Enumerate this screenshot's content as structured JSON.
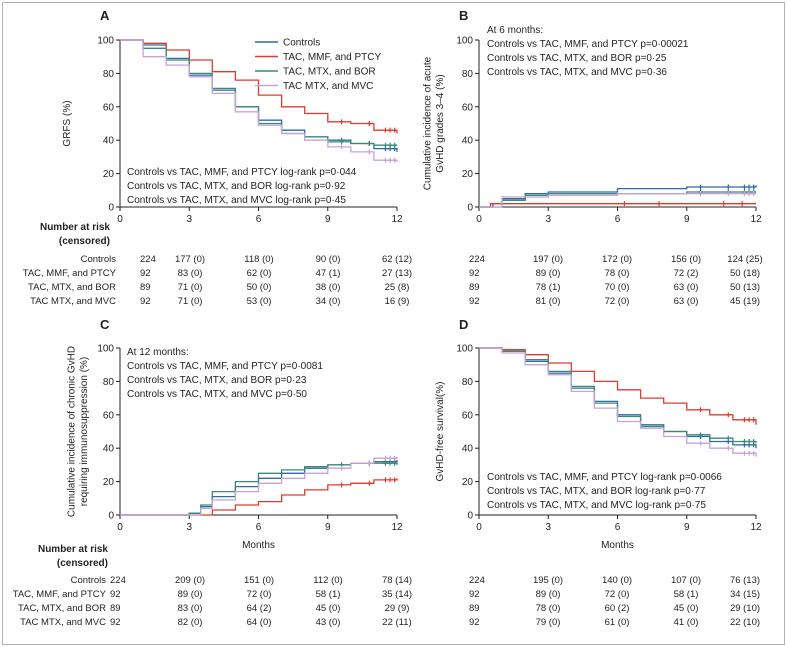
{
  "chart_data": [
    {
      "panel": "A",
      "type": "line",
      "ylabel": "GRFS (%)",
      "xlabel": "",
      "xlim": [
        0,
        12
      ],
      "ylim": [
        0,
        100
      ],
      "x_ticks": [
        "0",
        "3",
        "6",
        "9",
        "12"
      ],
      "y_ticks": [
        "0",
        "20",
        "40",
        "60",
        "80",
        "100"
      ],
      "legend": [
        "Controls",
        "TAC, MMF, and PTCY",
        "TAC, MTX, and BOR",
        "TAC MTX, and MVC"
      ],
      "annotation_header": "",
      "annotations": [
        "Controls vs TAC, MMF, and PTCY log-rank p=0·044",
        "Controls vs TAC, MTX, and BOR log-rank p=0·92",
        "Controls vs TAC, MTX, and MVC log-rank p=0·45"
      ],
      "series": [
        {
          "name": "Controls",
          "color": "#2d6aa6",
          "points": [
            [
              0,
              100
            ],
            [
              1,
              97
            ],
            [
              2,
              89
            ],
            [
              3,
              79
            ],
            [
              4,
              70
            ],
            [
              5,
              60
            ],
            [
              6,
              52
            ],
            [
              7,
              46
            ],
            [
              8,
              42
            ],
            [
              9,
              40
            ],
            [
              10,
              38
            ],
            [
              11,
              35
            ],
            [
              12,
              33
            ]
          ]
        },
        {
          "name": "TAC, MMF, and PTCY",
          "color": "#e03a2f",
          "points": [
            [
              0,
              100
            ],
            [
              1,
              98
            ],
            [
              2,
              94
            ],
            [
              3,
              88
            ],
            [
              4,
              81
            ],
            [
              5,
              76
            ],
            [
              6,
              67
            ],
            [
              7,
              60
            ],
            [
              8,
              56
            ],
            [
              9,
              51
            ],
            [
              10,
              50
            ],
            [
              11,
              46
            ],
            [
              12,
              44
            ]
          ]
        },
        {
          "name": "TAC, MTX, and BOR",
          "color": "#3d8a74",
          "points": [
            [
              0,
              100
            ],
            [
              1,
              95
            ],
            [
              2,
              88
            ],
            [
              3,
              80
            ],
            [
              4,
              71
            ],
            [
              5,
              60
            ],
            [
              6,
              50
            ],
            [
              7,
              44
            ],
            [
              8,
              42
            ],
            [
              9,
              39
            ],
            [
              10,
              38
            ],
            [
              11,
              37
            ],
            [
              12,
              37
            ]
          ]
        },
        {
          "name": "TAC MTX, and MVC",
          "color": "#c8a2d6",
          "points": [
            [
              0,
              100
            ],
            [
              1,
              90
            ],
            [
              2,
              85
            ],
            [
              3,
              78
            ],
            [
              4,
              68
            ],
            [
              5,
              57
            ],
            [
              6,
              49
            ],
            [
              7,
              44
            ],
            [
              8,
              40
            ],
            [
              9,
              36
            ],
            [
              10,
              33
            ],
            [
              11,
              28
            ],
            [
              12,
              27
            ]
          ]
        }
      ]
    },
    {
      "panel": "B",
      "type": "line",
      "ylabel": "Cumulative incidence of acute GvHD grades 3–4 (%)",
      "xlabel": "",
      "xlim": [
        0,
        12
      ],
      "ylim": [
        0,
        100
      ],
      "x_ticks": [
        "0",
        "3",
        "6",
        "9",
        "12"
      ],
      "y_ticks": [
        "0",
        "20",
        "40",
        "60",
        "80",
        "100"
      ],
      "legend": [],
      "annotation_header": "At 6 months:",
      "annotations": [
        "Controls vs TAC, MMF, and PTCY p=0·00021",
        "Controls vs TAC, MTX, and BOR p=0·25",
        "Controls vs TAC, MTX, and MVC p=0·36"
      ],
      "series": [
        {
          "name": "Controls",
          "color": "#2d6aa6",
          "points": [
            [
              0,
              0
            ],
            [
              0.6,
              2
            ],
            [
              1,
              5
            ],
            [
              2,
              8
            ],
            [
              3,
              9
            ],
            [
              6,
              11
            ],
            [
              9,
              12
            ],
            [
              12,
              13
            ]
          ]
        },
        {
          "name": "TAC, MMF, and PTCY",
          "color": "#e03a2f",
          "points": [
            [
              0,
              0
            ],
            [
              0.5,
              2
            ],
            [
              12,
              2
            ]
          ]
        },
        {
          "name": "TAC, MTX, and BOR",
          "color": "#3d8a74",
          "points": [
            [
              0,
              0
            ],
            [
              1,
              4
            ],
            [
              2,
              7
            ],
            [
              3,
              8
            ],
            [
              6,
              8
            ],
            [
              9,
              9
            ],
            [
              12,
              9
            ]
          ]
        },
        {
          "name": "TAC MTX, and MVC",
          "color": "#c8a2d6",
          "points": [
            [
              0,
              0
            ],
            [
              1,
              6
            ],
            [
              3,
              7
            ],
            [
              6,
              8
            ],
            [
              12,
              8
            ]
          ]
        }
      ]
    },
    {
      "panel": "C",
      "type": "line",
      "ylabel": "Cumulative incidence of chronic GvHD requiring immunosuppression (%)",
      "xlabel": "Months",
      "xlim": [
        0,
        12
      ],
      "ylim": [
        0,
        100
      ],
      "x_ticks": [
        "0",
        "3",
        "6",
        "9",
        "12"
      ],
      "y_ticks": [
        "0",
        "20",
        "40",
        "60",
        "80",
        "100"
      ],
      "legend": [],
      "annotation_header": "At 12 months:",
      "annotations": [
        "Controls vs TAC, MMF, and PTCY p=0·0081",
        "Controls vs TAC, MTX, and BOR p=0·23",
        "Controls vs TAC, MTX, and MVC p=0·50"
      ],
      "series": [
        {
          "name": "Controls",
          "color": "#2d6aa6",
          "points": [
            [
              0,
              0
            ],
            [
              3,
              1
            ],
            [
              3.5,
              5
            ],
            [
              4,
              11
            ],
            [
              5,
              17
            ],
            [
              6,
              22
            ],
            [
              7,
              25
            ],
            [
              8,
              28
            ],
            [
              9,
              30
            ],
            [
              10,
              31
            ],
            [
              11,
              32
            ],
            [
              12,
              33
            ]
          ]
        },
        {
          "name": "TAC, MMF, and PTCY",
          "color": "#e03a2f",
          "points": [
            [
              0,
              0
            ],
            [
              3,
              0
            ],
            [
              4,
              3
            ],
            [
              5,
              6
            ],
            [
              6,
              8
            ],
            [
              7,
              12
            ],
            [
              8,
              15
            ],
            [
              9,
              18
            ],
            [
              10,
              19
            ],
            [
              11,
              21
            ],
            [
              12,
              22
            ]
          ]
        },
        {
          "name": "TAC, MTX, and BOR",
          "color": "#3d8a74",
          "points": [
            [
              0,
              0
            ],
            [
              3,
              1
            ],
            [
              3.5,
              6
            ],
            [
              4,
              14
            ],
            [
              5,
              20
            ],
            [
              6,
              25
            ],
            [
              7,
              27
            ],
            [
              8,
              29
            ],
            [
              9,
              30
            ],
            [
              10,
              31
            ],
            [
              11,
              31
            ],
            [
              12,
              30
            ]
          ]
        },
        {
          "name": "TAC MTX, and MVC",
          "color": "#c8a2d6",
          "points": [
            [
              0,
              0
            ],
            [
              3,
              0
            ],
            [
              3.5,
              4
            ],
            [
              4,
              9
            ],
            [
              5,
              14
            ],
            [
              6,
              19
            ],
            [
              7,
              22
            ],
            [
              8,
              25
            ],
            [
              9,
              28
            ],
            [
              10,
              31
            ],
            [
              11,
              34
            ],
            [
              12,
              35
            ]
          ]
        }
      ]
    },
    {
      "panel": "D",
      "type": "line",
      "ylabel": "GvHD-free survival(%)",
      "xlabel": "Months",
      "xlim": [
        0,
        12
      ],
      "ylim": [
        0,
        100
      ],
      "x_ticks": [
        "0",
        "3",
        "6",
        "9",
        "12"
      ],
      "y_ticks": [
        "0",
        "20",
        "40",
        "60",
        "80",
        "100"
      ],
      "legend": [],
      "annotation_header": "",
      "annotations": [
        "Controls vs TAC, MMF, and PTCY log-rank p=0·0066",
        "Controls vs TAC, MTX, and BOR log-rank p=0·77",
        "Controls vs TAC, MTX, and MVC log-rank p=0·75"
      ],
      "series": [
        {
          "name": "Controls",
          "color": "#2d6aa6",
          "points": [
            [
              0,
              100
            ],
            [
              1,
              98
            ],
            [
              2,
              92
            ],
            [
              3,
              85
            ],
            [
              4,
              76
            ],
            [
              5,
              68
            ],
            [
              6,
              60
            ],
            [
              7,
              54
            ],
            [
              8,
              50
            ],
            [
              9,
              47
            ],
            [
              10,
              44
            ],
            [
              11,
              42
            ],
            [
              12,
              40
            ]
          ]
        },
        {
          "name": "TAC, MMF, and PTCY",
          "color": "#e03a2f",
          "points": [
            [
              0,
              100
            ],
            [
              1,
              99
            ],
            [
              2,
              96
            ],
            [
              3,
              91
            ],
            [
              4,
              86
            ],
            [
              5,
              80
            ],
            [
              6,
              75
            ],
            [
              7,
              70
            ],
            [
              8,
              67
            ],
            [
              9,
              63
            ],
            [
              10,
              60
            ],
            [
              11,
              57
            ],
            [
              12,
              54
            ]
          ]
        },
        {
          "name": "TAC, MTX, and BOR",
          "color": "#3d8a74",
          "points": [
            [
              0,
              100
            ],
            [
              1,
              98
            ],
            [
              2,
              93
            ],
            [
              3,
              86
            ],
            [
              4,
              77
            ],
            [
              5,
              67
            ],
            [
              6,
              59
            ],
            [
              7,
              53
            ],
            [
              8,
              50
            ],
            [
              9,
              48
            ],
            [
              10,
              46
            ],
            [
              11,
              44
            ],
            [
              12,
              43
            ]
          ]
        },
        {
          "name": "TAC MTX, and MVC",
          "color": "#c8a2d6",
          "points": [
            [
              0,
              100
            ],
            [
              1,
              97
            ],
            [
              2,
              90
            ],
            [
              3,
              84
            ],
            [
              4,
              74
            ],
            [
              5,
              64
            ],
            [
              6,
              56
            ],
            [
              7,
              52
            ],
            [
              8,
              47
            ],
            [
              9,
              43
            ],
            [
              10,
              40
            ],
            [
              11,
              37
            ],
            [
              12,
              35
            ]
          ]
        }
      ]
    }
  ],
  "risk_tables": [
    {
      "panel": "A",
      "header": [
        "Number at risk",
        "(censored)"
      ],
      "rows": [
        {
          "label": "Controls",
          "values": [
            "224",
            "177 (0)",
            "118 (0)",
            "90 (0)",
            "62 (12)"
          ]
        },
        {
          "label": "TAC, MMF, and PTCY",
          "values": [
            "92",
            "83 (0)",
            "62 (0)",
            "47 (1)",
            "27 (13)"
          ]
        },
        {
          "label": "TAC, MTX, and BOR",
          "values": [
            "89",
            "71 (0)",
            "50 (0)",
            "38 (0)",
            "25 (8)"
          ]
        },
        {
          "label": "TAC MTX, and MVC",
          "values": [
            "92",
            "71 (0)",
            "53 (0)",
            "34 (0)",
            "16 (9)"
          ]
        }
      ]
    },
    {
      "panel": "B",
      "rows": [
        {
          "label": "Controls",
          "values": [
            "224",
            "197 (0)",
            "172 (0)",
            "156 (0)",
            "124 (25)"
          ]
        },
        {
          "label": "TAC, MMF, and PTCY",
          "values": [
            "92",
            "89 (0)",
            "78 (0)",
            "72 (2)",
            "50 (18)"
          ]
        },
        {
          "label": "TAC, MTX, and BOR",
          "values": [
            "89",
            "78 (1)",
            "70 (0)",
            "63 (0)",
            "50 (13)"
          ]
        },
        {
          "label": "TAC MTX, and MVC",
          "values": [
            "92",
            "81 (0)",
            "72 (0)",
            "63 (0)",
            "45 (19)"
          ]
        }
      ]
    },
    {
      "panel": "C",
      "header": [
        "Number at risk",
        "(censored)"
      ],
      "rows": [
        {
          "label": "Controls",
          "values": [
            "224",
            "209 (0)",
            "151 (0)",
            "112 (0)",
            "78 (14)"
          ]
        },
        {
          "label": "TAC, MMF, and PTCY",
          "values": [
            "92",
            "89 (0)",
            "72 (0)",
            "58 (1)",
            "35 (14)"
          ]
        },
        {
          "label": "TAC, MTX, and BOR",
          "values": [
            "89",
            "83 (0)",
            "64 (2)",
            "45 (0)",
            "29 (9)"
          ]
        },
        {
          "label": "TAC MTX, and MVC",
          "values": [
            "92",
            "82 (0)",
            "64 (0)",
            "43 (0)",
            "22 (11)"
          ]
        }
      ]
    },
    {
      "panel": "D",
      "rows": [
        {
          "label": "Controls",
          "values": [
            "224",
            "195 (0)",
            "140 (0)",
            "107 (0)",
            "76 (13)"
          ]
        },
        {
          "label": "TAC, MMF, and PTCY",
          "values": [
            "92",
            "89 (0)",
            "72 (0)",
            "58 (1)",
            "34 (15)"
          ]
        },
        {
          "label": "TAC, MTX, and BOR",
          "values": [
            "89",
            "78 (0)",
            "60 (2)",
            "45 (0)",
            "29 (10)"
          ]
        },
        {
          "label": "TAC MTX, and MVC",
          "values": [
            "92",
            "79 (0)",
            "61 (0)",
            "41 (0)",
            "22 (10)"
          ]
        }
      ]
    }
  ]
}
